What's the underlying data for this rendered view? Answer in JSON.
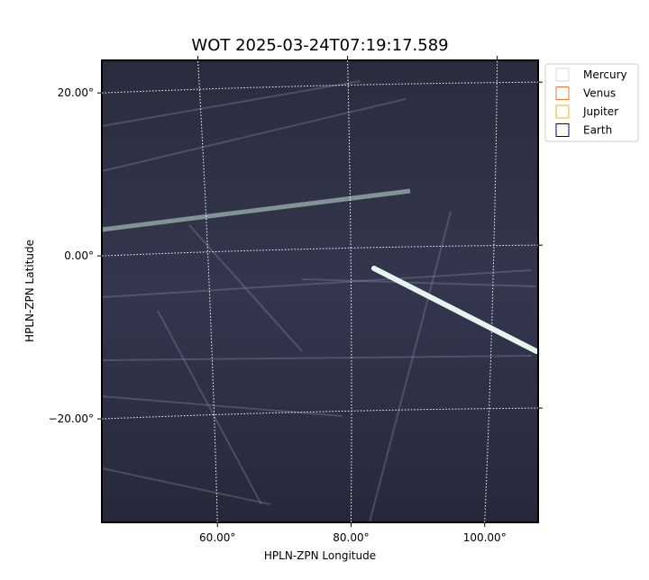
{
  "chart_data": {
    "type": "image",
    "title": "WOT 2025-03-24T07:19:17.589",
    "x_label": "HPLN-ZPN Longitude",
    "y_label": "HPLN-ZPN Latitude",
    "xlim": [
      42.7,
      108
    ],
    "ylim": [
      -32.7,
      24
    ],
    "xticks": [
      {
        "value": 60,
        "label": "60.00°"
      },
      {
        "value": 80,
        "label": "80.00°"
      },
      {
        "value": 100,
        "label": "100.00°"
      }
    ],
    "yticks": [
      {
        "value": 20,
        "label": "20.00°"
      },
      {
        "value": 0,
        "label": "0.00°"
      },
      {
        "value": -20,
        "label": "−20.00°"
      }
    ],
    "grid": true,
    "legend_position": "outside right",
    "series": [
      {
        "name": "Mercury",
        "color": "#d9d9d9"
      },
      {
        "name": "Venus",
        "color": "#e07b39"
      },
      {
        "name": "Jupiter",
        "color": "#e6b422"
      },
      {
        "name": "Earth",
        "color": "#00007f"
      }
    ]
  }
}
